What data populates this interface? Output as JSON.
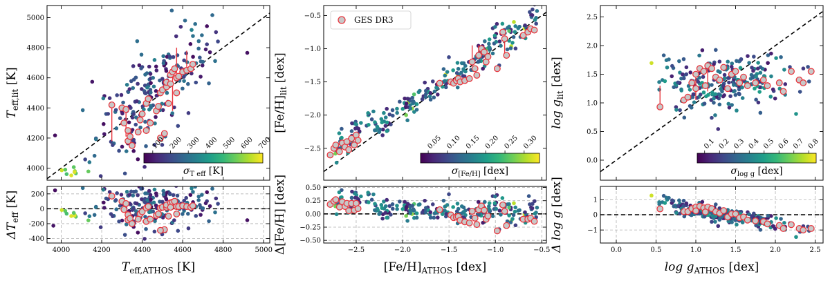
{
  "figure": {
    "legend_label": "GES DR3",
    "colors": {
      "viridis": [
        "#440154",
        "#482878",
        "#3e4989",
        "#31688e",
        "#26828e",
        "#1f9e89",
        "#35b779",
        "#6ece58",
        "#b5de2b",
        "#fde725"
      ],
      "ges_face": "#c8c8c8",
      "ges_edge": "#e8373f",
      "one_to_one": "#000000",
      "grid": "#b0b0b0"
    }
  },
  "chart_data": [
    {
      "id": "teff",
      "type": "scatter",
      "xlabel_tex": [
        "T",
        "eff,ATHOS",
        " [K]"
      ],
      "ylabel_top": [
        "T",
        "eff,lit",
        " [K]"
      ],
      "ylabel_bottom": [
        "ΔT",
        "eff",
        " [K]"
      ],
      "xlim": [
        3930,
        5030
      ],
      "ylim_top": [
        3920,
        5080
      ],
      "ylim_bottom": [
        -460,
        300
      ],
      "xticks": [
        4000,
        4200,
        4400,
        4600,
        4800,
        5000
      ],
      "yticks_top": [
        4000,
        4200,
        4400,
        4600,
        4800,
        5000
      ],
      "yticks_bottom": [
        -400,
        -200,
        0,
        200
      ],
      "colorbar": {
        "label": [
          "σ",
          "T",
          "eff",
          " [K]"
        ],
        "ticks": [
          100,
          200,
          300,
          400,
          500,
          600,
          700
        ],
        "range": [
          50,
          720
        ]
      },
      "field_points": {
        "count": 220,
        "x_center": 4470,
        "x_spread": 150,
        "slope": 1.02,
        "offset": 45,
        "scatter": 170,
        "sigma_range": [
          70,
          350
        ],
        "outlier_sigma": [
          500,
          700
        ]
      },
      "ges_points": [
        [
          4250,
          4420
        ],
        [
          4300,
          4400
        ],
        [
          4320,
          4390
        ],
        [
          4310,
          4300
        ],
        [
          4330,
          4250
        ],
        [
          4330,
          4180
        ],
        [
          4340,
          4210
        ],
        [
          4350,
          4150
        ],
        [
          4390,
          4320
        ],
        [
          4400,
          4360
        ],
        [
          4420,
          4430
        ],
        [
          4430,
          4460
        ],
        [
          4470,
          4380
        ],
        [
          4480,
          4410
        ],
        [
          4490,
          4500
        ],
        [
          4500,
          4520
        ],
        [
          4520,
          4540
        ],
        [
          4520,
          4570
        ],
        [
          4540,
          4620
        ],
        [
          4540,
          4560
        ],
        [
          4550,
          4640
        ],
        [
          4560,
          4660
        ],
        [
          4570,
          4500
        ],
        [
          4570,
          4600
        ],
        [
          4580,
          4610
        ],
        [
          4600,
          4640
        ],
        [
          4620,
          4650
        ],
        [
          4640,
          4660
        ],
        [
          4650,
          4690
        ],
        [
          4420,
          4250
        ],
        [
          4510,
          4230
        ],
        [
          4530,
          4430
        ],
        [
          4440,
          4300
        ],
        [
          4380,
          4240
        ],
        [
          4490,
          4200
        ]
      ],
      "ges_links": [
        [
          4250,
          4420,
          4250,
          4180
        ],
        [
          4320,
          4390,
          4320,
          4210
        ],
        [
          4550,
          4640,
          4550,
          4380
        ],
        [
          4570,
          4600,
          4570,
          4800
        ],
        [
          4620,
          4650,
          4620,
          4780
        ]
      ]
    },
    {
      "id": "feh",
      "type": "scatter",
      "xlabel_tex": [
        "[Fe/H]",
        "ATHOS",
        " [dex]"
      ],
      "ylabel_top": [
        "[Fe/H]",
        "lit",
        " [dex]"
      ],
      "ylabel_bottom": [
        "Δ[Fe/H] [dex]",
        "",
        ""
      ],
      "xlim": [
        -2.85,
        -0.45
      ],
      "ylim_top": [
        -2.98,
        -0.35
      ],
      "ylim_bottom": [
        -0.55,
        0.52
      ],
      "xticks": [
        -2.5,
        -2.0,
        -1.5,
        -1.0,
        -0.5
      ],
      "xtick_labels": [
        "−2.5",
        "−2.0",
        "−1.5",
        "−1.0",
        "−0.5"
      ],
      "yticks_top": [
        -3.0,
        -2.5,
        -2.0,
        -1.5,
        -1.0,
        -0.5
      ],
      "ytick_labels_top": [
        "−3.0",
        "−2.5",
        "−2.0",
        "−1.5",
        "−1.0",
        "−0.5"
      ],
      "yticks_bottom": [
        -0.5,
        -0.25,
        0.0,
        0.25,
        0.5
      ],
      "ytick_labels_bottom": [
        "−0.50",
        "−0.25",
        "0.00",
        "0.25",
        "0.50"
      ],
      "colorbar": {
        "label": [
          "σ",
          "[Fe/H]",
          "",
          " [dex]"
        ],
        "ticks": [
          0.05,
          0.1,
          0.15,
          0.2,
          0.25,
          0.3
        ],
        "tick_labels": [
          "0.05",
          "0.10",
          "0.15",
          "0.20",
          "0.25",
          "0.30"
        ],
        "range": [
          0.03,
          0.34
        ]
      },
      "field_points": {
        "count": 230,
        "slope": 1.0,
        "offset": 0.05,
        "scatter": 0.12,
        "sigma_range": [
          0.05,
          0.2
        ],
        "outlier_sigma": [
          0.25,
          0.33
        ]
      },
      "ges_points": [
        [
          -2.78,
          -2.6
        ],
        [
          -2.74,
          -2.5
        ],
        [
          -2.72,
          -2.45
        ],
        [
          -2.68,
          -2.55
        ],
        [
          -2.65,
          -2.42
        ],
        [
          -2.62,
          -2.48
        ],
        [
          -2.6,
          -2.4
        ],
        [
          -2.58,
          -2.52
        ],
        [
          -2.55,
          -2.35
        ],
        [
          -2.52,
          -2.45
        ],
        [
          -2.5,
          -2.3
        ],
        [
          -2.48,
          -2.38
        ],
        [
          -1.48,
          -1.5
        ],
        [
          -1.45,
          -1.52
        ],
        [
          -1.42,
          -1.48
        ],
        [
          -1.4,
          -1.45
        ],
        [
          -1.38,
          -1.5
        ],
        [
          -1.33,
          -1.48
        ],
        [
          -1.28,
          -1.45
        ],
        [
          -1.25,
          -1.2
        ],
        [
          -1.22,
          -1.3
        ],
        [
          -1.2,
          -1.4
        ],
        [
          -1.18,
          -1.1
        ],
        [
          -1.15,
          -1.0
        ],
        [
          -1.12,
          -1.05
        ],
        [
          -1.1,
          -1.2
        ],
        [
          -1.08,
          -1.12
        ],
        [
          -0.98,
          -1.3
        ],
        [
          -0.92,
          -0.75
        ],
        [
          -0.9,
          -0.85
        ],
        [
          -0.88,
          -1.1
        ],
        [
          -0.7,
          -0.8
        ],
        [
          -0.65,
          -0.75
        ],
        [
          -0.62,
          -0.7
        ],
        [
          -0.58,
          -0.72
        ],
        [
          -1.6,
          -1.52
        ]
      ],
      "ges_links": [
        [
          -1.25,
          -1.2,
          -1.25,
          -0.95
        ],
        [
          -1.18,
          -1.1,
          -1.18,
          -0.95
        ],
        [
          -0.9,
          -0.85,
          -0.9,
          -1.1
        ]
      ]
    },
    {
      "id": "logg",
      "type": "scatter",
      "xlabel_tex": [
        "log g",
        "ATHOS",
        " [dex]"
      ],
      "ylabel_top": [
        "log g",
        "lit",
        " [dex]"
      ],
      "ylabel_bottom": [
        "Δ log g",
        "",
        " [dex]"
      ],
      "xlim": [
        -0.2,
        2.6
      ],
      "ylim_top": [
        -0.35,
        2.7
      ],
      "ylim_bottom": [
        -1.85,
        1.85
      ],
      "xticks": [
        0.0,
        0.5,
        1.0,
        1.5,
        2.0,
        2.5
      ],
      "xtick_labels": [
        "0.0",
        "0.5",
        "1.0",
        "1.5",
        "2.0",
        "2.5"
      ],
      "yticks_top": [
        0.0,
        0.5,
        1.0,
        1.5,
        2.0,
        2.5
      ],
      "ytick_labels_top": [
        "0.0",
        "0.5",
        "1.0",
        "1.5",
        "2.0",
        "2.5"
      ],
      "yticks_bottom": [
        -1,
        0,
        1
      ],
      "ytick_labels_bottom": [
        "−1",
        "0",
        "1"
      ],
      "colorbar": {
        "label": [
          "σ",
          "log g",
          "",
          " [dex]"
        ],
        "ticks": [
          0.1,
          0.2,
          0.3,
          0.4,
          0.5,
          0.6,
          0.7,
          0.8
        ],
        "tick_labels": [
          "0.1",
          "0.2",
          "0.3",
          "0.4",
          "0.5",
          "0.6",
          "0.7",
          "0.8"
        ],
        "range": [
          0.05,
          0.85
        ]
      },
      "field_points": {
        "count": 230,
        "x_center": 1.35,
        "flat_y": 1.35,
        "scatter": 0.25,
        "sigma_range": [
          0.1,
          0.5
        ],
        "outlier_sigma": [
          0.6,
          0.82
        ]
      },
      "ges_points": [
        [
          0.55,
          0.93
        ],
        [
          0.85,
          1.05
        ],
        [
          0.9,
          1.1
        ],
        [
          0.95,
          1.35
        ],
        [
          1.0,
          1.5
        ],
        [
          1.05,
          1.6
        ],
        [
          1.1,
          1.55
        ],
        [
          1.15,
          1.65
        ],
        [
          1.2,
          1.6
        ],
        [
          1.25,
          1.45
        ],
        [
          1.3,
          1.4
        ],
        [
          1.35,
          1.62
        ],
        [
          1.4,
          1.25
        ],
        [
          1.45,
          1.5
        ],
        [
          1.5,
          1.55
        ],
        [
          1.55,
          1.35
        ],
        [
          1.6,
          1.45
        ],
        [
          1.65,
          1.3
        ],
        [
          1.75,
          1.35
        ],
        [
          1.85,
          1.4
        ],
        [
          1.9,
          1.3
        ],
        [
          2.05,
          1.35
        ],
        [
          2.1,
          1.2
        ],
        [
          2.2,
          1.55
        ],
        [
          2.3,
          1.4
        ],
        [
          2.35,
          1.35
        ],
        [
          2.45,
          1.55
        ],
        [
          1.0,
          1.25
        ],
        [
          1.12,
          1.3
        ]
      ],
      "ges_links": [
        [
          0.55,
          0.93,
          0.55,
          1.3
        ],
        [
          1.0,
          1.5,
          1.0,
          1.05
        ],
        [
          1.15,
          1.65,
          1.15,
          1.2
        ]
      ]
    }
  ]
}
